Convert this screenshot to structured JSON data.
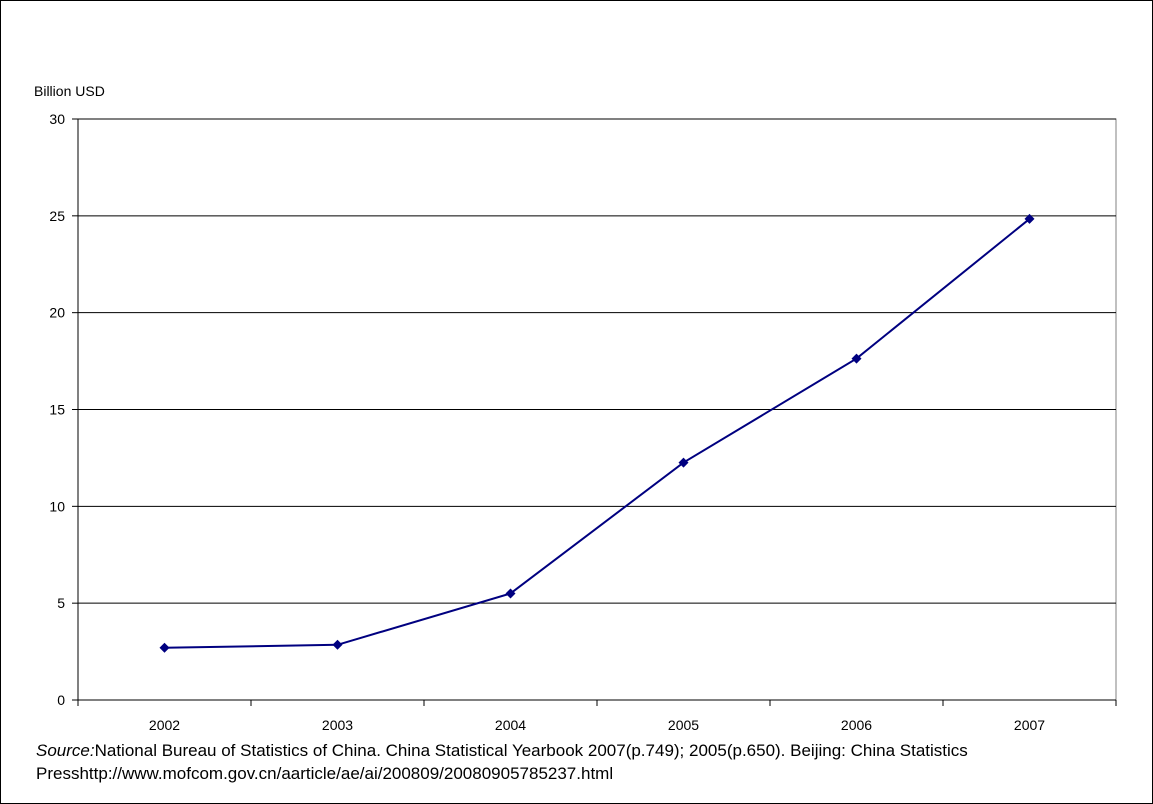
{
  "chart_data": {
    "type": "line",
    "ylabel": "Billion USD",
    "xlabel": "",
    "categories": [
      "2002",
      "2003",
      "2004",
      "2005",
      "2006",
      "2007"
    ],
    "series": [
      {
        "values": [
          2.7,
          2.85,
          5.5,
          12.26,
          17.63,
          24.84
        ]
      }
    ],
    "ylim": [
      0,
      30
    ],
    "yticks": [
      0,
      5,
      10,
      15,
      20,
      25,
      30
    ],
    "grid": true,
    "line_color": "#000080",
    "marker": "diamond"
  },
  "source": {
    "label": "Source:",
    "text": "National Bureau of Statistics of China. China Statistical Yearbook 2007(p.749); 2005(p.650). Beijing: China Statistics Press",
    "url": "http://www.mofcom.gov.cn/aarticle/ae/ai/200809/20080905785237.html"
  }
}
